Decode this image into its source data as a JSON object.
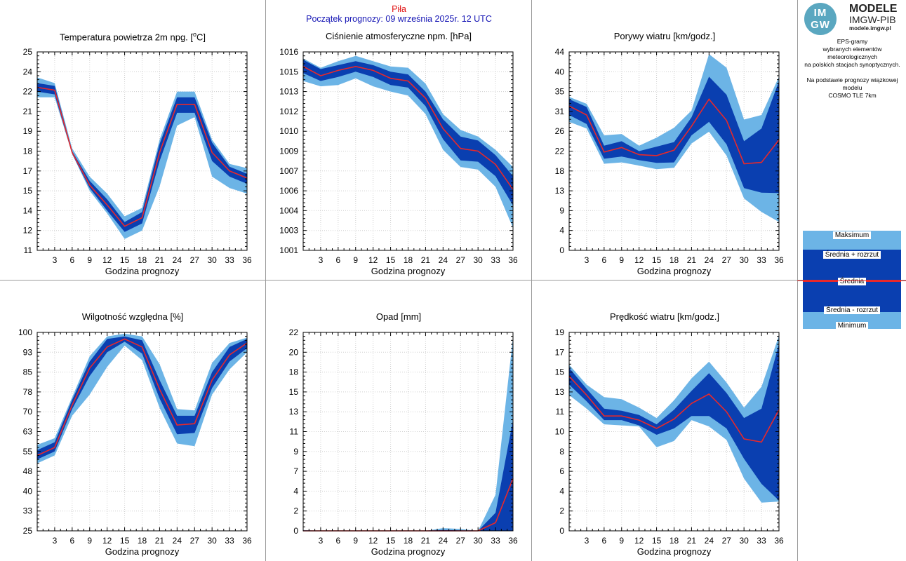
{
  "header": {
    "station": "Piła",
    "forecast_start": "Początek prognozy: 09 września 2025r. 12 UTC"
  },
  "logo": {
    "mark_top": "IM",
    "mark_bottom": "GW",
    "title": "MODELE",
    "subtitle": "IMGW-PIB",
    "url": "modele.imgw.pl"
  },
  "description": {
    "lines": [
      "EPS-gramy",
      "wybranych elementów meteorologicznych",
      "na polskich stacjach  synoptycznych.",
      "",
      "Na podstawie prognozy wiązkowej modelu",
      "COSMO TLE 7km"
    ]
  },
  "legend": {
    "max": "Maksimum",
    "mean_plus": "Średnia + rozrzut",
    "mean": "Średnia",
    "mean_minus": "Średnia - rozrzut",
    "min": "Minimum"
  },
  "colors": {
    "outer_band": "#6cb4e6",
    "inner_band": "#0a3fb0",
    "mean_line": "#e8282a",
    "station_text": "#e01010",
    "start_text": "#1414b4"
  },
  "chart_data": [
    {
      "id": "temperature",
      "type": "area",
      "title": "Temperatura powietrza 2m npg. [°C]",
      "title_parts": [
        "Temperatura powietrza 2m npg. [",
        "o",
        "C]"
      ],
      "xlabel": "Godzina prognozy",
      "x": [
        0,
        3,
        6,
        9,
        12,
        15,
        18,
        21,
        24,
        27,
        30,
        33,
        36
      ],
      "xticks": [
        "3",
        "6",
        "9",
        "12",
        "15",
        "18",
        "21",
        "24",
        "27",
        "30",
        "33",
        "36"
      ],
      "ylim": [
        11,
        25
      ],
      "yticks": [
        "11",
        "12",
        "14",
        "15",
        "17",
        "18",
        "19",
        "21",
        "22",
        "24",
        "25"
      ],
      "series": [
        {
          "name": "Maksimum",
          "values": [
            23.2,
            22.8,
            18.2,
            16.2,
            15.0,
            13.4,
            14.0,
            18.8,
            22.2,
            22.2,
            18.8,
            17.1,
            16.8
          ]
        },
        {
          "name": "Średnia + rozrzut",
          "values": [
            22.8,
            22.6,
            18.0,
            15.9,
            14.6,
            13.0,
            13.7,
            18.5,
            21.8,
            21.8,
            18.6,
            16.9,
            16.4
          ]
        },
        {
          "name": "Średnia",
          "values": [
            22.5,
            22.3,
            17.9,
            15.6,
            14.2,
            12.7,
            13.3,
            17.9,
            21.3,
            21.3,
            17.9,
            16.6,
            16.1
          ]
        },
        {
          "name": "Średnia - rozrzut",
          "values": [
            22.2,
            22.0,
            17.8,
            15.4,
            13.8,
            12.3,
            12.9,
            17.3,
            20.7,
            20.7,
            17.3,
            16.2,
            15.7
          ]
        },
        {
          "name": "Minimum",
          "values": [
            21.8,
            21.8,
            17.8,
            15.2,
            13.6,
            11.8,
            12.4,
            15.5,
            19.8,
            20.4,
            16.2,
            15.4,
            15.0
          ]
        }
      ]
    },
    {
      "id": "pressure",
      "type": "area",
      "title": "Ciśnienie atmosferyczne npm. [hPa]",
      "title_parts": [
        "Ciśnienie atmosferyczne npm. [hPa]",
        "",
        ""
      ],
      "xlabel": "Godzina prognozy",
      "x": [
        0,
        3,
        6,
        9,
        12,
        15,
        18,
        21,
        24,
        27,
        30,
        33,
        36
      ],
      "xticks": [
        "3",
        "6",
        "9",
        "12",
        "15",
        "18",
        "21",
        "24",
        "27",
        "30",
        "33",
        "36"
      ],
      "ylim": [
        1001,
        1016
      ],
      "yticks": [
        "1001",
        "1003",
        "1004",
        "1006",
        "1007",
        "1009",
        "1010",
        "1012",
        "1013",
        "1015",
        "1016"
      ],
      "series": [
        {
          "name": "Maksimum",
          "values": [
            1015.5,
            1014.8,
            1015.3,
            1015.7,
            1015.3,
            1014.9,
            1014.8,
            1013.6,
            1011.3,
            1010.1,
            1009.6,
            1008.6,
            1007.3
          ]
        },
        {
          "name": "Średnia + rozrzut",
          "values": [
            1015.4,
            1014.7,
            1015.0,
            1015.3,
            1015.0,
            1014.5,
            1014.3,
            1013.0,
            1010.9,
            1009.6,
            1009.3,
            1008.2,
            1006.6
          ]
        },
        {
          "name": "Średnia",
          "values": [
            1014.9,
            1014.2,
            1014.6,
            1014.9,
            1014.6,
            1014.0,
            1013.8,
            1012.5,
            1010.2,
            1008.7,
            1008.5,
            1007.5,
            1005.6
          ]
        },
        {
          "name": "Średnia - rozrzut",
          "values": [
            1014.4,
            1013.8,
            1014.1,
            1014.5,
            1014.1,
            1013.5,
            1013.3,
            1011.9,
            1009.4,
            1007.8,
            1007.7,
            1006.6,
            1004.4
          ]
        },
        {
          "name": "Minimum",
          "values": [
            1013.8,
            1013.4,
            1013.5,
            1014.0,
            1013.4,
            1013.0,
            1012.7,
            1011.3,
            1008.6,
            1007.3,
            1007.1,
            1005.8,
            1002.7
          ]
        }
      ]
    },
    {
      "id": "gusts",
      "type": "area",
      "title": "Porywy wiatru [km/godz.]",
      "title_parts": [
        "Porywy wiatru [km/godz.]",
        "",
        ""
      ],
      "xlabel": "Godzina prognozy",
      "x": [
        0,
        3,
        6,
        9,
        12,
        15,
        18,
        21,
        24,
        27,
        30,
        33,
        36
      ],
      "xticks": [
        "3",
        "6",
        "9",
        "12",
        "15",
        "18",
        "21",
        "24",
        "27",
        "30",
        "33",
        "36"
      ],
      "ylim": [
        0,
        44
      ],
      "yticks": [
        "0",
        "4",
        "9",
        "13",
        "18",
        "22",
        "26",
        "31",
        "35",
        "40",
        "44"
      ],
      "series": [
        {
          "name": "Maksimum",
          "values": [
            34.0,
            32.5,
            25.5,
            25.8,
            23.2,
            25.0,
            27.2,
            31.0,
            43.5,
            40.5,
            29.0,
            30.0,
            38.5
          ]
        },
        {
          "name": "Średnia + rozrzut",
          "values": [
            33.5,
            31.8,
            23.2,
            24.2,
            22.0,
            23.0,
            24.0,
            29.5,
            38.5,
            34.5,
            24.2,
            27.0,
            37.5
          ]
        },
        {
          "name": "Średnia",
          "values": [
            32.0,
            30.0,
            21.8,
            22.8,
            21.2,
            21.0,
            22.2,
            27.5,
            33.5,
            28.8,
            19.2,
            19.5,
            24.5
          ]
        },
        {
          "name": "Średnia - rozrzut",
          "values": [
            30.0,
            28.0,
            20.3,
            20.8,
            20.0,
            19.4,
            19.5,
            25.5,
            28.5,
            23.5,
            13.8,
            12.8,
            12.7
          ]
        },
        {
          "name": "Minimum",
          "values": [
            28.5,
            27.0,
            19.2,
            19.5,
            18.8,
            18.0,
            18.3,
            23.7,
            26.3,
            21.0,
            11.5,
            8.5,
            6.3
          ]
        }
      ]
    },
    {
      "id": "humidity",
      "type": "area",
      "title": "Wilgotność względna [%]",
      "title_parts": [
        "Wilgotność względna [%]",
        "",
        ""
      ],
      "xlabel": "Godzina prognozy",
      "x": [
        0,
        3,
        6,
        9,
        12,
        15,
        18,
        21,
        24,
        27,
        30,
        33,
        36
      ],
      "xticks": [
        "3",
        "6",
        "9",
        "12",
        "15",
        "18",
        "21",
        "24",
        "27",
        "30",
        "33",
        "36"
      ],
      "ylim": [
        25,
        100
      ],
      "yticks": [
        "25",
        "33",
        "40",
        "48",
        "55",
        "63",
        "70",
        "78",
        "85",
        "93",
        "100"
      ],
      "series": [
        {
          "name": "Maksimum",
          "values": [
            57.5,
            60.0,
            75.5,
            91.0,
            98.5,
            99.5,
            98.5,
            88.0,
            71.0,
            70.5,
            88.5,
            96.0,
            98.0
          ]
        },
        {
          "name": "Średnia + rozrzut",
          "values": [
            55.5,
            58.5,
            74.5,
            89.0,
            97.5,
            98.5,
            97.0,
            82.0,
            68.5,
            68.5,
            85.0,
            94.5,
            97.5
          ]
        },
        {
          "name": "Średnia",
          "values": [
            53.5,
            56.5,
            72.5,
            86.5,
            94.5,
            97.5,
            94.5,
            78.5,
            65.0,
            65.5,
            82.0,
            91.5,
            96.0
          ]
        },
        {
          "name": "Średnia - rozrzut",
          "values": [
            52.0,
            55.0,
            71.0,
            83.5,
            92.5,
            96.5,
            92.0,
            75.0,
            61.5,
            62.0,
            79.0,
            89.0,
            94.0
          ]
        },
        {
          "name": "Minimum",
          "values": [
            50.5,
            53.5,
            68.5,
            76.5,
            87.0,
            95.0,
            89.5,
            71.5,
            58.0,
            57.0,
            76.5,
            86.0,
            92.5
          ]
        }
      ]
    },
    {
      "id": "precipitation",
      "type": "area",
      "title": "Opad [mm]",
      "title_parts": [
        "Opad [mm]",
        "",
        ""
      ],
      "xlabel": "Godzina prognozy",
      "x": [
        0,
        3,
        6,
        9,
        12,
        15,
        18,
        21,
        24,
        27,
        30,
        33,
        36
      ],
      "xticks": [
        "3",
        "6",
        "9",
        "12",
        "15",
        "18",
        "21",
        "24",
        "27",
        "30",
        "33",
        "36"
      ],
      "ylim": [
        0,
        22
      ],
      "yticks": [
        "0",
        "2",
        "4",
        "7",
        "9",
        "11",
        "13",
        "15",
        "18",
        "20",
        "22"
      ],
      "series": [
        {
          "name": "Maksimum",
          "values": [
            0.1,
            0.0,
            0.0,
            0.0,
            0.0,
            0.0,
            0.0,
            0.0,
            0.3,
            0.2,
            0.0,
            4.0,
            21.5
          ]
        },
        {
          "name": "Średnia + rozrzut",
          "values": [
            0.0,
            0.0,
            0.0,
            0.0,
            0.0,
            0.0,
            0.0,
            0.0,
            0.1,
            0.05,
            0.0,
            2.0,
            12.3
          ]
        },
        {
          "name": "Średnia",
          "values": [
            0.0,
            0.0,
            0.0,
            0.0,
            0.0,
            0.0,
            0.0,
            0.0,
            0.0,
            0.0,
            0.0,
            0.9,
            5.8
          ]
        },
        {
          "name": "Średnia - rozrzut",
          "values": [
            0.0,
            0.0,
            0.0,
            0.0,
            0.0,
            0.0,
            0.0,
            0.0,
            0.0,
            0.0,
            0.0,
            0.0,
            0.0
          ]
        },
        {
          "name": "Minimum",
          "values": [
            0.0,
            0.0,
            0.0,
            0.0,
            0.0,
            0.0,
            0.0,
            0.0,
            0.0,
            0.0,
            0.0,
            0.0,
            0.0
          ]
        }
      ]
    },
    {
      "id": "wind_speed",
      "type": "area",
      "title": "Prędkość wiatru [km/godz.]",
      "title_parts": [
        "Prędkość wiatru [km/godz.]",
        "",
        ""
      ],
      "xlabel": "Godzina prognozy",
      "x": [
        0,
        3,
        6,
        9,
        12,
        15,
        18,
        21,
        24,
        27,
        30,
        33,
        36
      ],
      "xticks": [
        "3",
        "6",
        "9",
        "12",
        "15",
        "18",
        "21",
        "24",
        "27",
        "30",
        "33",
        "36"
      ],
      "ylim": [
        0,
        19
      ],
      "yticks": [
        "0",
        "2",
        "4",
        "6",
        "8",
        "10",
        "11",
        "13",
        "15",
        "17",
        "19"
      ],
      "series": [
        {
          "name": "Maksimum",
          "values": [
            15.9,
            14.0,
            12.8,
            12.6,
            11.8,
            10.8,
            12.5,
            14.6,
            16.2,
            14.2,
            11.8,
            13.8,
            18.7
          ]
        },
        {
          "name": "Średnia + rozrzut",
          "values": [
            15.6,
            13.6,
            11.7,
            11.5,
            11.1,
            10.2,
            11.6,
            13.4,
            15.1,
            13.2,
            10.8,
            11.7,
            17.9
          ]
        },
        {
          "name": "Średnia",
          "values": [
            14.8,
            13.0,
            11.0,
            11.0,
            10.6,
            9.8,
            10.7,
            12.2,
            13.1,
            11.4,
            8.8,
            8.5,
            11.6
          ]
        },
        {
          "name": "Średnia - rozrzut",
          "values": [
            14.0,
            12.4,
            10.6,
            10.6,
            10.1,
            9.2,
            9.8,
            11.0,
            11.0,
            9.8,
            6.9,
            4.5,
            2.9
          ]
        },
        {
          "name": "Minimum",
          "values": [
            13.0,
            11.7,
            10.2,
            10.1,
            10.0,
            8.0,
            8.6,
            10.6,
            10.0,
            8.7,
            5.0,
            2.7,
            2.8
          ]
        }
      ]
    }
  ]
}
